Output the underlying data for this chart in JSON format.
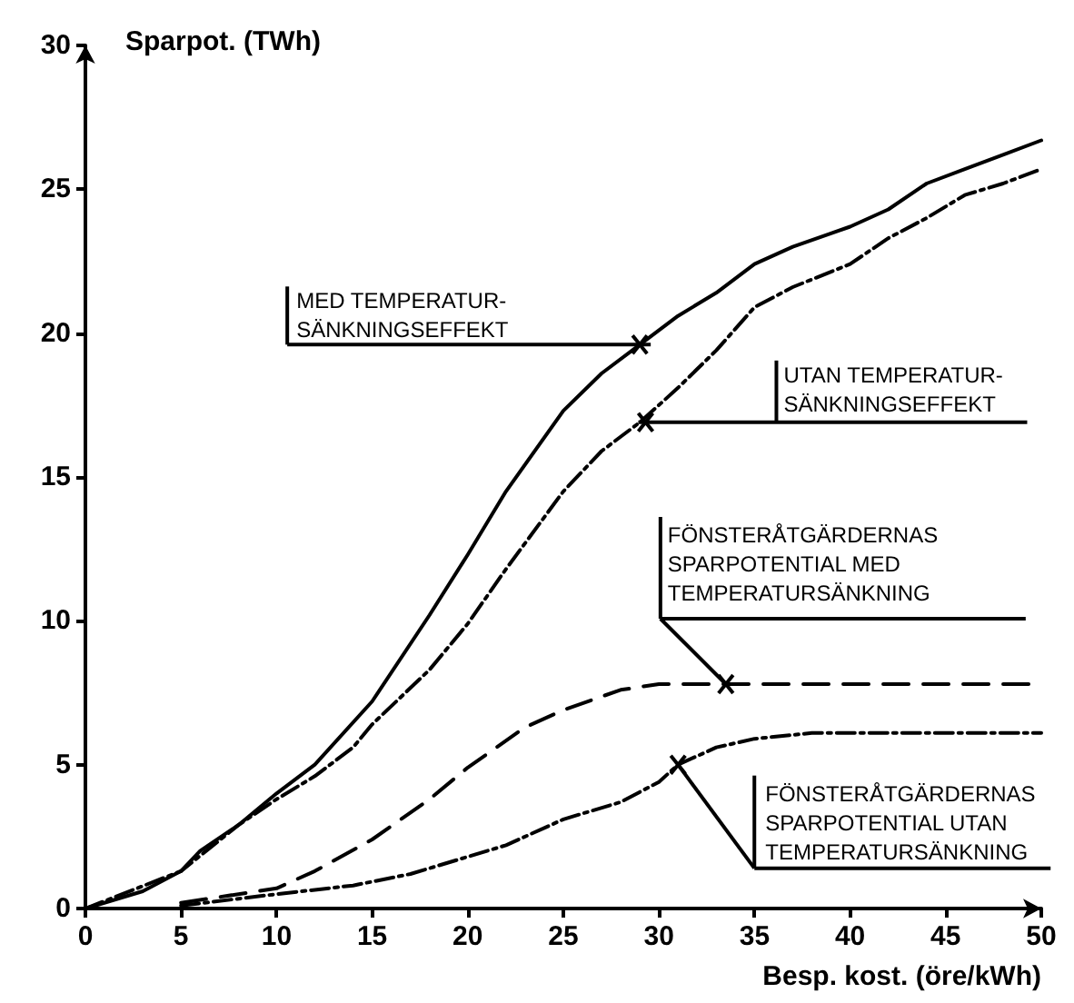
{
  "chart_data": {
    "type": "line",
    "xlabel": "Besp. kost. (öre/kWh)",
    "ylabel": "Sparpot. (TWh)",
    "xlim": [
      0,
      50
    ],
    "xticks": [
      0,
      5,
      10,
      15,
      20,
      25,
      30,
      35,
      40,
      45,
      50
    ],
    "ylim": [
      0,
      30
    ],
    "yticks": [
      0,
      5,
      10,
      15,
      20,
      25,
      30
    ],
    "grid": false,
    "marker": "none",
    "series": [
      {
        "color": "#000000",
        "line_style": "solid",
        "x": [
          0,
          3,
          5,
          6,
          8,
          10,
          12,
          15,
          18,
          20,
          22,
          25,
          27,
          29,
          31,
          33,
          35,
          37,
          40,
          42,
          44,
          46,
          48,
          50
        ],
        "values": [
          0,
          0.6,
          1.3,
          2,
          2.9,
          4,
          5,
          7.2,
          10.2,
          12.3,
          14.5,
          17.3,
          18.6,
          19.6,
          20.6,
          21.4,
          22.4,
          23,
          23.7,
          24.3,
          25.2,
          25.7,
          26.2,
          26.7
        ]
      },
      {
        "color": "#000000",
        "line_style": "dashdot",
        "x": [
          0,
          5,
          8,
          10,
          12,
          14,
          15,
          18,
          20,
          22,
          25,
          27,
          29,
          31,
          33,
          35,
          37,
          40,
          42,
          44,
          46,
          48,
          50
        ],
        "values": [
          0,
          1.3,
          2.9,
          3.8,
          4.6,
          5.6,
          6.4,
          8.3,
          9.9,
          11.8,
          14.5,
          15.9,
          16.9,
          18.1,
          19.4,
          20.9,
          21.6,
          22.4,
          23.3,
          24,
          24.8,
          25.2,
          25.7
        ]
      },
      {
        "color": "#000000",
        "line_style": "dashed",
        "x": [
          5,
          10,
          12,
          15,
          18,
          20,
          23,
          25,
          28,
          30,
          33.5,
          50
        ],
        "values": [
          0.2,
          0.7,
          1.3,
          2.4,
          3.8,
          4.9,
          6.3,
          6.9,
          7.6,
          7.8,
          7.8,
          7.8
        ]
      },
      {
        "color": "#000000",
        "line_style": "dashdot",
        "x": [
          5,
          10,
          14,
          17,
          20,
          22,
          25,
          28,
          30,
          31,
          33,
          35,
          38,
          40,
          50
        ],
        "values": [
          0.1,
          0.5,
          0.8,
          1.2,
          1.8,
          2.2,
          3.1,
          3.7,
          4.4,
          5,
          5.6,
          5.9,
          6.1,
          6.1,
          6.1
        ]
      }
    ],
    "annotations": [
      {
        "text": "MED TEMPERATUR-\nSÄNKNINGSEFFEKT",
        "x": 29,
        "y": 19.6
      },
      {
        "text": "UTAN TEMPERATUR-\nSÄNKNINGSEFFEKT",
        "x": 29.3,
        "y": 16.9
      },
      {
        "text": "FÖNSTERÅTGÄRDERNAS\nSPARPOTENTIAL MED\nTEMPERATURSÄNKNING",
        "x": 33.5,
        "y": 7.8
      },
      {
        "text": "FÖNSTERÅTGÄRDERNAS\nSPARPOTENTIAL UTAN\nTEMPERATURSÄNKNING",
        "x": 31,
        "y": 5
      }
    ]
  }
}
